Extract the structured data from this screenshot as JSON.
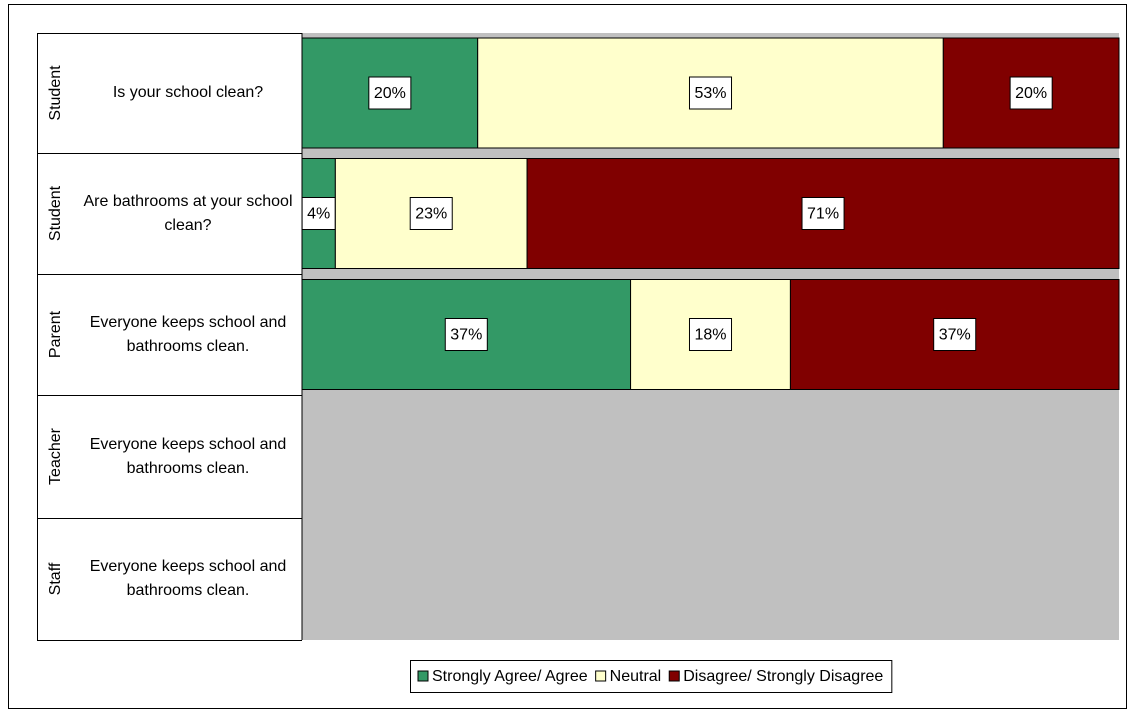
{
  "chart_data": {
    "type": "stacked_bar_100",
    "groups": [
      "Student",
      "Student",
      "Parent",
      "Teacher",
      "Staff"
    ],
    "categories": [
      "Is your school clean?",
      "Are bathrooms at your school clean?",
      "Everyone keeps school and bathrooms clean.",
      "Everyone keeps school and bathrooms clean.",
      "Everyone keeps school and bathrooms clean."
    ],
    "series": [
      {
        "name": "Strongly Agree/ Agree",
        "color": "#339966",
        "values": [
          20,
          4,
          37,
          null,
          null
        ],
        "value_labels": [
          "20%",
          "4%",
          "37%",
          null,
          null
        ]
      },
      {
        "name": "Neutral",
        "color": "#ffffcc",
        "values": [
          53,
          23,
          18,
          null,
          null
        ],
        "value_labels": [
          "53%",
          "23%",
          "18%",
          null,
          null
        ]
      },
      {
        "name": "Disagree/ Strongly Disagree",
        "color": "#800000",
        "values": [
          20,
          71,
          37,
          null,
          null
        ],
        "value_labels": [
          "20%",
          "71%",
          "37%",
          null,
          null
        ]
      }
    ],
    "legend": "bottom"
  }
}
